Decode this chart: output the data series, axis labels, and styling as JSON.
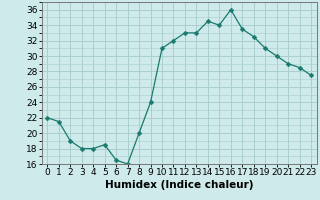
{
  "x": [
    0,
    1,
    2,
    3,
    4,
    5,
    6,
    7,
    8,
    9,
    10,
    11,
    12,
    13,
    14,
    15,
    16,
    17,
    18,
    19,
    20,
    21,
    22,
    23
  ],
  "y": [
    22,
    21.5,
    19,
    18,
    18,
    18.5,
    16.5,
    16,
    20,
    24,
    31,
    32,
    33,
    33,
    34.5,
    34,
    36,
    33.5,
    32.5,
    31,
    30,
    29,
    28.5,
    27.5
  ],
  "line_color": "#1a7a6e",
  "marker": "D",
  "marker_size": 2.5,
  "background_color": "#ceeaea",
  "grid_color": "#aacfcf",
  "xlabel": "Humidex (Indice chaleur)",
  "xlim": [
    -0.5,
    23.5
  ],
  "ylim": [
    16,
    37
  ],
  "yticks": [
    16,
    18,
    20,
    22,
    24,
    26,
    28,
    30,
    32,
    34,
    36
  ],
  "xtick_labels": [
    "0",
    "1",
    "2",
    "3",
    "4",
    "5",
    "6",
    "7",
    "8",
    "9",
    "10",
    "11",
    "12",
    "13",
    "14",
    "15",
    "16",
    "17",
    "18",
    "19",
    "20",
    "21",
    "22",
    "23"
  ],
  "tick_fontsize": 6.5,
  "xlabel_fontsize": 7.5
}
